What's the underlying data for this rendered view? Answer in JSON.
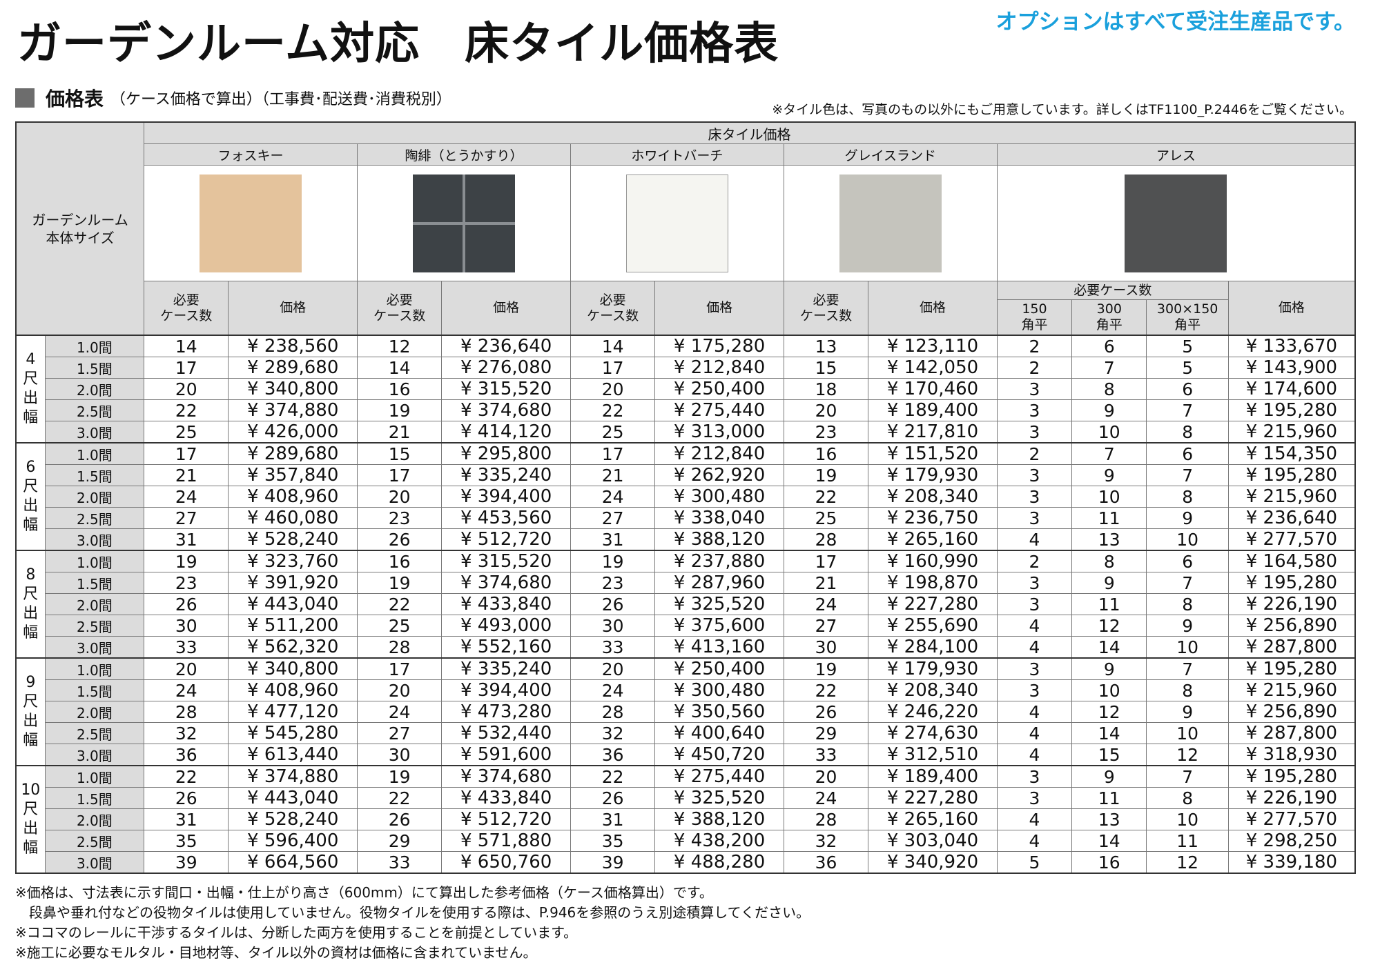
{
  "header": {
    "title": "ガーデンルーム対応　床タイル価格表",
    "notice": "オプションはすべて受注生産品です。"
  },
  "section": {
    "label": "価格表",
    "note": "（ケース価格で算出）（工事費･配送費･消費税別）",
    "color_note": "※タイル色は、写真のもの以外にもご用意しています。詳しくはTF1100_P.2446をご覧ください。"
  },
  "table": {
    "corner_label": "ガーデンルーム\n本体サイズ",
    "group_header": "床タイル価格",
    "tiles": [
      {
        "name": "フォスキー",
        "color": "#e4c39c"
      },
      {
        "name": "陶緋（とうかすり）",
        "color": "#3d4246"
      },
      {
        "name": "ホワイトバーチ",
        "color": "#f5f5f1"
      },
      {
        "name": "グレイスランド",
        "color": "#c5c4bd"
      },
      {
        "name": "アレス",
        "color": "#505152"
      }
    ],
    "col_cases": "必要\nケース数",
    "col_price": "価格",
    "ares_cases_header": "必要ケース数",
    "ares_sub": [
      "150\n角平",
      "300\n角平",
      "300×150\n角平"
    ],
    "groups": [
      {
        "label": "4\n尺\n出\n幅",
        "rows": [
          {
            "size": "1.0間",
            "c1": "14",
            "p1": "¥ 238,560",
            "c2": "12",
            "p2": "¥ 236,640",
            "c3": "14",
            "p3": "¥ 175,280",
            "c4": "13",
            "p4": "¥ 123,110",
            "a150": "2",
            "a300": "6",
            "a300x150": "5",
            "p5": "¥ 133,670"
          },
          {
            "size": "1.5間",
            "c1": "17",
            "p1": "¥ 289,680",
            "c2": "14",
            "p2": "¥ 276,080",
            "c3": "17",
            "p3": "¥ 212,840",
            "c4": "15",
            "p4": "¥ 142,050",
            "a150": "2",
            "a300": "7",
            "a300x150": "5",
            "p5": "¥ 143,900"
          },
          {
            "size": "2.0間",
            "c1": "20",
            "p1": "¥ 340,800",
            "c2": "16",
            "p2": "¥ 315,520",
            "c3": "20",
            "p3": "¥ 250,400",
            "c4": "18",
            "p4": "¥ 170,460",
            "a150": "3",
            "a300": "8",
            "a300x150": "6",
            "p5": "¥ 174,600"
          },
          {
            "size": "2.5間",
            "c1": "22",
            "p1": "¥ 374,880",
            "c2": "19",
            "p2": "¥ 374,680",
            "c3": "22",
            "p3": "¥ 275,440",
            "c4": "20",
            "p4": "¥ 189,400",
            "a150": "3",
            "a300": "9",
            "a300x150": "7",
            "p5": "¥ 195,280"
          },
          {
            "size": "3.0間",
            "c1": "25",
            "p1": "¥ 426,000",
            "c2": "21",
            "p2": "¥ 414,120",
            "c3": "25",
            "p3": "¥ 313,000",
            "c4": "23",
            "p4": "¥ 217,810",
            "a150": "3",
            "a300": "10",
            "a300x150": "8",
            "p5": "¥ 215,960"
          }
        ]
      },
      {
        "label": "6\n尺\n出\n幅",
        "rows": [
          {
            "size": "1.0間",
            "c1": "17",
            "p1": "¥ 289,680",
            "c2": "15",
            "p2": "¥ 295,800",
            "c3": "17",
            "p3": "¥ 212,840",
            "c4": "16",
            "p4": "¥ 151,520",
            "a150": "2",
            "a300": "7",
            "a300x150": "6",
            "p5": "¥ 154,350"
          },
          {
            "size": "1.5間",
            "c1": "21",
            "p1": "¥ 357,840",
            "c2": "17",
            "p2": "¥ 335,240",
            "c3": "21",
            "p3": "¥ 262,920",
            "c4": "19",
            "p4": "¥ 179,930",
            "a150": "3",
            "a300": "9",
            "a300x150": "7",
            "p5": "¥ 195,280"
          },
          {
            "size": "2.0間",
            "c1": "24",
            "p1": "¥ 408,960",
            "c2": "20",
            "p2": "¥ 394,400",
            "c3": "24",
            "p3": "¥ 300,480",
            "c4": "22",
            "p4": "¥ 208,340",
            "a150": "3",
            "a300": "10",
            "a300x150": "8",
            "p5": "¥ 215,960"
          },
          {
            "size": "2.5間",
            "c1": "27",
            "p1": "¥ 460,080",
            "c2": "23",
            "p2": "¥ 453,560",
            "c3": "27",
            "p3": "¥ 338,040",
            "c4": "25",
            "p4": "¥ 236,750",
            "a150": "3",
            "a300": "11",
            "a300x150": "9",
            "p5": "¥ 236,640"
          },
          {
            "size": "3.0間",
            "c1": "31",
            "p1": "¥ 528,240",
            "c2": "26",
            "p2": "¥ 512,720",
            "c3": "31",
            "p3": "¥ 388,120",
            "c4": "28",
            "p4": "¥ 265,160",
            "a150": "4",
            "a300": "13",
            "a300x150": "10",
            "p5": "¥ 277,570"
          }
        ]
      },
      {
        "label": "8\n尺\n出\n幅",
        "rows": [
          {
            "size": "1.0間",
            "c1": "19",
            "p1": "¥ 323,760",
            "c2": "16",
            "p2": "¥ 315,520",
            "c3": "19",
            "p3": "¥ 237,880",
            "c4": "17",
            "p4": "¥ 160,990",
            "a150": "2",
            "a300": "8",
            "a300x150": "6",
            "p5": "¥ 164,580"
          },
          {
            "size": "1.5間",
            "c1": "23",
            "p1": "¥ 391,920",
            "c2": "19",
            "p2": "¥ 374,680",
            "c3": "23",
            "p3": "¥ 287,960",
            "c4": "21",
            "p4": "¥ 198,870",
            "a150": "3",
            "a300": "9",
            "a300x150": "7",
            "p5": "¥ 195,280"
          },
          {
            "size": "2.0間",
            "c1": "26",
            "p1": "¥ 443,040",
            "c2": "22",
            "p2": "¥ 433,840",
            "c3": "26",
            "p3": "¥ 325,520",
            "c4": "24",
            "p4": "¥ 227,280",
            "a150": "3",
            "a300": "11",
            "a300x150": "8",
            "p5": "¥ 226,190"
          },
          {
            "size": "2.5間",
            "c1": "30",
            "p1": "¥ 511,200",
            "c2": "25",
            "p2": "¥ 493,000",
            "c3": "30",
            "p3": "¥ 375,600",
            "c4": "27",
            "p4": "¥ 255,690",
            "a150": "4",
            "a300": "12",
            "a300x150": "9",
            "p5": "¥ 256,890"
          },
          {
            "size": "3.0間",
            "c1": "33",
            "p1": "¥ 562,320",
            "c2": "28",
            "p2": "¥ 552,160",
            "c3": "33",
            "p3": "¥ 413,160",
            "c4": "30",
            "p4": "¥ 284,100",
            "a150": "4",
            "a300": "14",
            "a300x150": "10",
            "p5": "¥ 287,800"
          }
        ]
      },
      {
        "label": "9\n尺\n出\n幅",
        "rows": [
          {
            "size": "1.0間",
            "c1": "20",
            "p1": "¥ 340,800",
            "c2": "17",
            "p2": "¥ 335,240",
            "c3": "20",
            "p3": "¥ 250,400",
            "c4": "19",
            "p4": "¥ 179,930",
            "a150": "3",
            "a300": "9",
            "a300x150": "7",
            "p5": "¥ 195,280"
          },
          {
            "size": "1.5間",
            "c1": "24",
            "p1": "¥ 408,960",
            "c2": "20",
            "p2": "¥ 394,400",
            "c3": "24",
            "p3": "¥ 300,480",
            "c4": "22",
            "p4": "¥ 208,340",
            "a150": "3",
            "a300": "10",
            "a300x150": "8",
            "p5": "¥ 215,960"
          },
          {
            "size": "2.0間",
            "c1": "28",
            "p1": "¥ 477,120",
            "c2": "24",
            "p2": "¥ 473,280",
            "c3": "28",
            "p3": "¥ 350,560",
            "c4": "26",
            "p4": "¥ 246,220",
            "a150": "4",
            "a300": "12",
            "a300x150": "9",
            "p5": "¥ 256,890"
          },
          {
            "size": "2.5間",
            "c1": "32",
            "p1": "¥ 545,280",
            "c2": "27",
            "p2": "¥ 532,440",
            "c3": "32",
            "p3": "¥ 400,640",
            "c4": "29",
            "p4": "¥ 274,630",
            "a150": "4",
            "a300": "14",
            "a300x150": "10",
            "p5": "¥ 287,800"
          },
          {
            "size": "3.0間",
            "c1": "36",
            "p1": "¥ 613,440",
            "c2": "30",
            "p2": "¥ 591,600",
            "c3": "36",
            "p3": "¥ 450,720",
            "c4": "33",
            "p4": "¥ 312,510",
            "a150": "4",
            "a300": "15",
            "a300x150": "12",
            "p5": "¥ 318,930"
          }
        ]
      },
      {
        "label": "10\n尺\n出\n幅",
        "rows": [
          {
            "size": "1.0間",
            "c1": "22",
            "p1": "¥ 374,880",
            "c2": "19",
            "p2": "¥ 374,680",
            "c3": "22",
            "p3": "¥ 275,440",
            "c4": "20",
            "p4": "¥ 189,400",
            "a150": "3",
            "a300": "9",
            "a300x150": "7",
            "p5": "¥ 195,280"
          },
          {
            "size": "1.5間",
            "c1": "26",
            "p1": "¥ 443,040",
            "c2": "22",
            "p2": "¥ 433,840",
            "c3": "26",
            "p3": "¥ 325,520",
            "c4": "24",
            "p4": "¥ 227,280",
            "a150": "3",
            "a300": "11",
            "a300x150": "8",
            "p5": "¥ 226,190"
          },
          {
            "size": "2.0間",
            "c1": "31",
            "p1": "¥ 528,240",
            "c2": "26",
            "p2": "¥ 512,720",
            "c3": "31",
            "p3": "¥ 388,120",
            "c4": "28",
            "p4": "¥ 265,160",
            "a150": "4",
            "a300": "13",
            "a300x150": "10",
            "p5": "¥ 277,570"
          },
          {
            "size": "2.5間",
            "c1": "35",
            "p1": "¥ 596,400",
            "c2": "29",
            "p2": "¥ 571,880",
            "c3": "35",
            "p3": "¥ 438,200",
            "c4": "32",
            "p4": "¥ 303,040",
            "a150": "4",
            "a300": "14",
            "a300x150": "11",
            "p5": "¥ 298,250"
          },
          {
            "size": "3.0間",
            "c1": "39",
            "p1": "¥ 664,560",
            "c2": "33",
            "p2": "¥ 650,760",
            "c3": "39",
            "p3": "¥ 488,280",
            "c4": "36",
            "p4": "¥ 340,920",
            "a150": "5",
            "a300": "16",
            "a300x150": "12",
            "p5": "¥ 339,180"
          }
        ]
      }
    ]
  },
  "notes": [
    "※価格は、寸法表に示す間口・出幅・仕上がり高さ（600mm）にて算出した参考価格（ケース価格算出）です。",
    "　段鼻や垂れ付などの役物タイルは使用していません。役物タイルを使用する際は、P.946を参照のうえ別途積算してください。",
    "※ココマのレールに干渉するタイルは、分断した両方を使用することを前提としています。",
    "※施工に必要なモルタル・目地材等、タイル以外の資材は価格に含まれていません。"
  ]
}
